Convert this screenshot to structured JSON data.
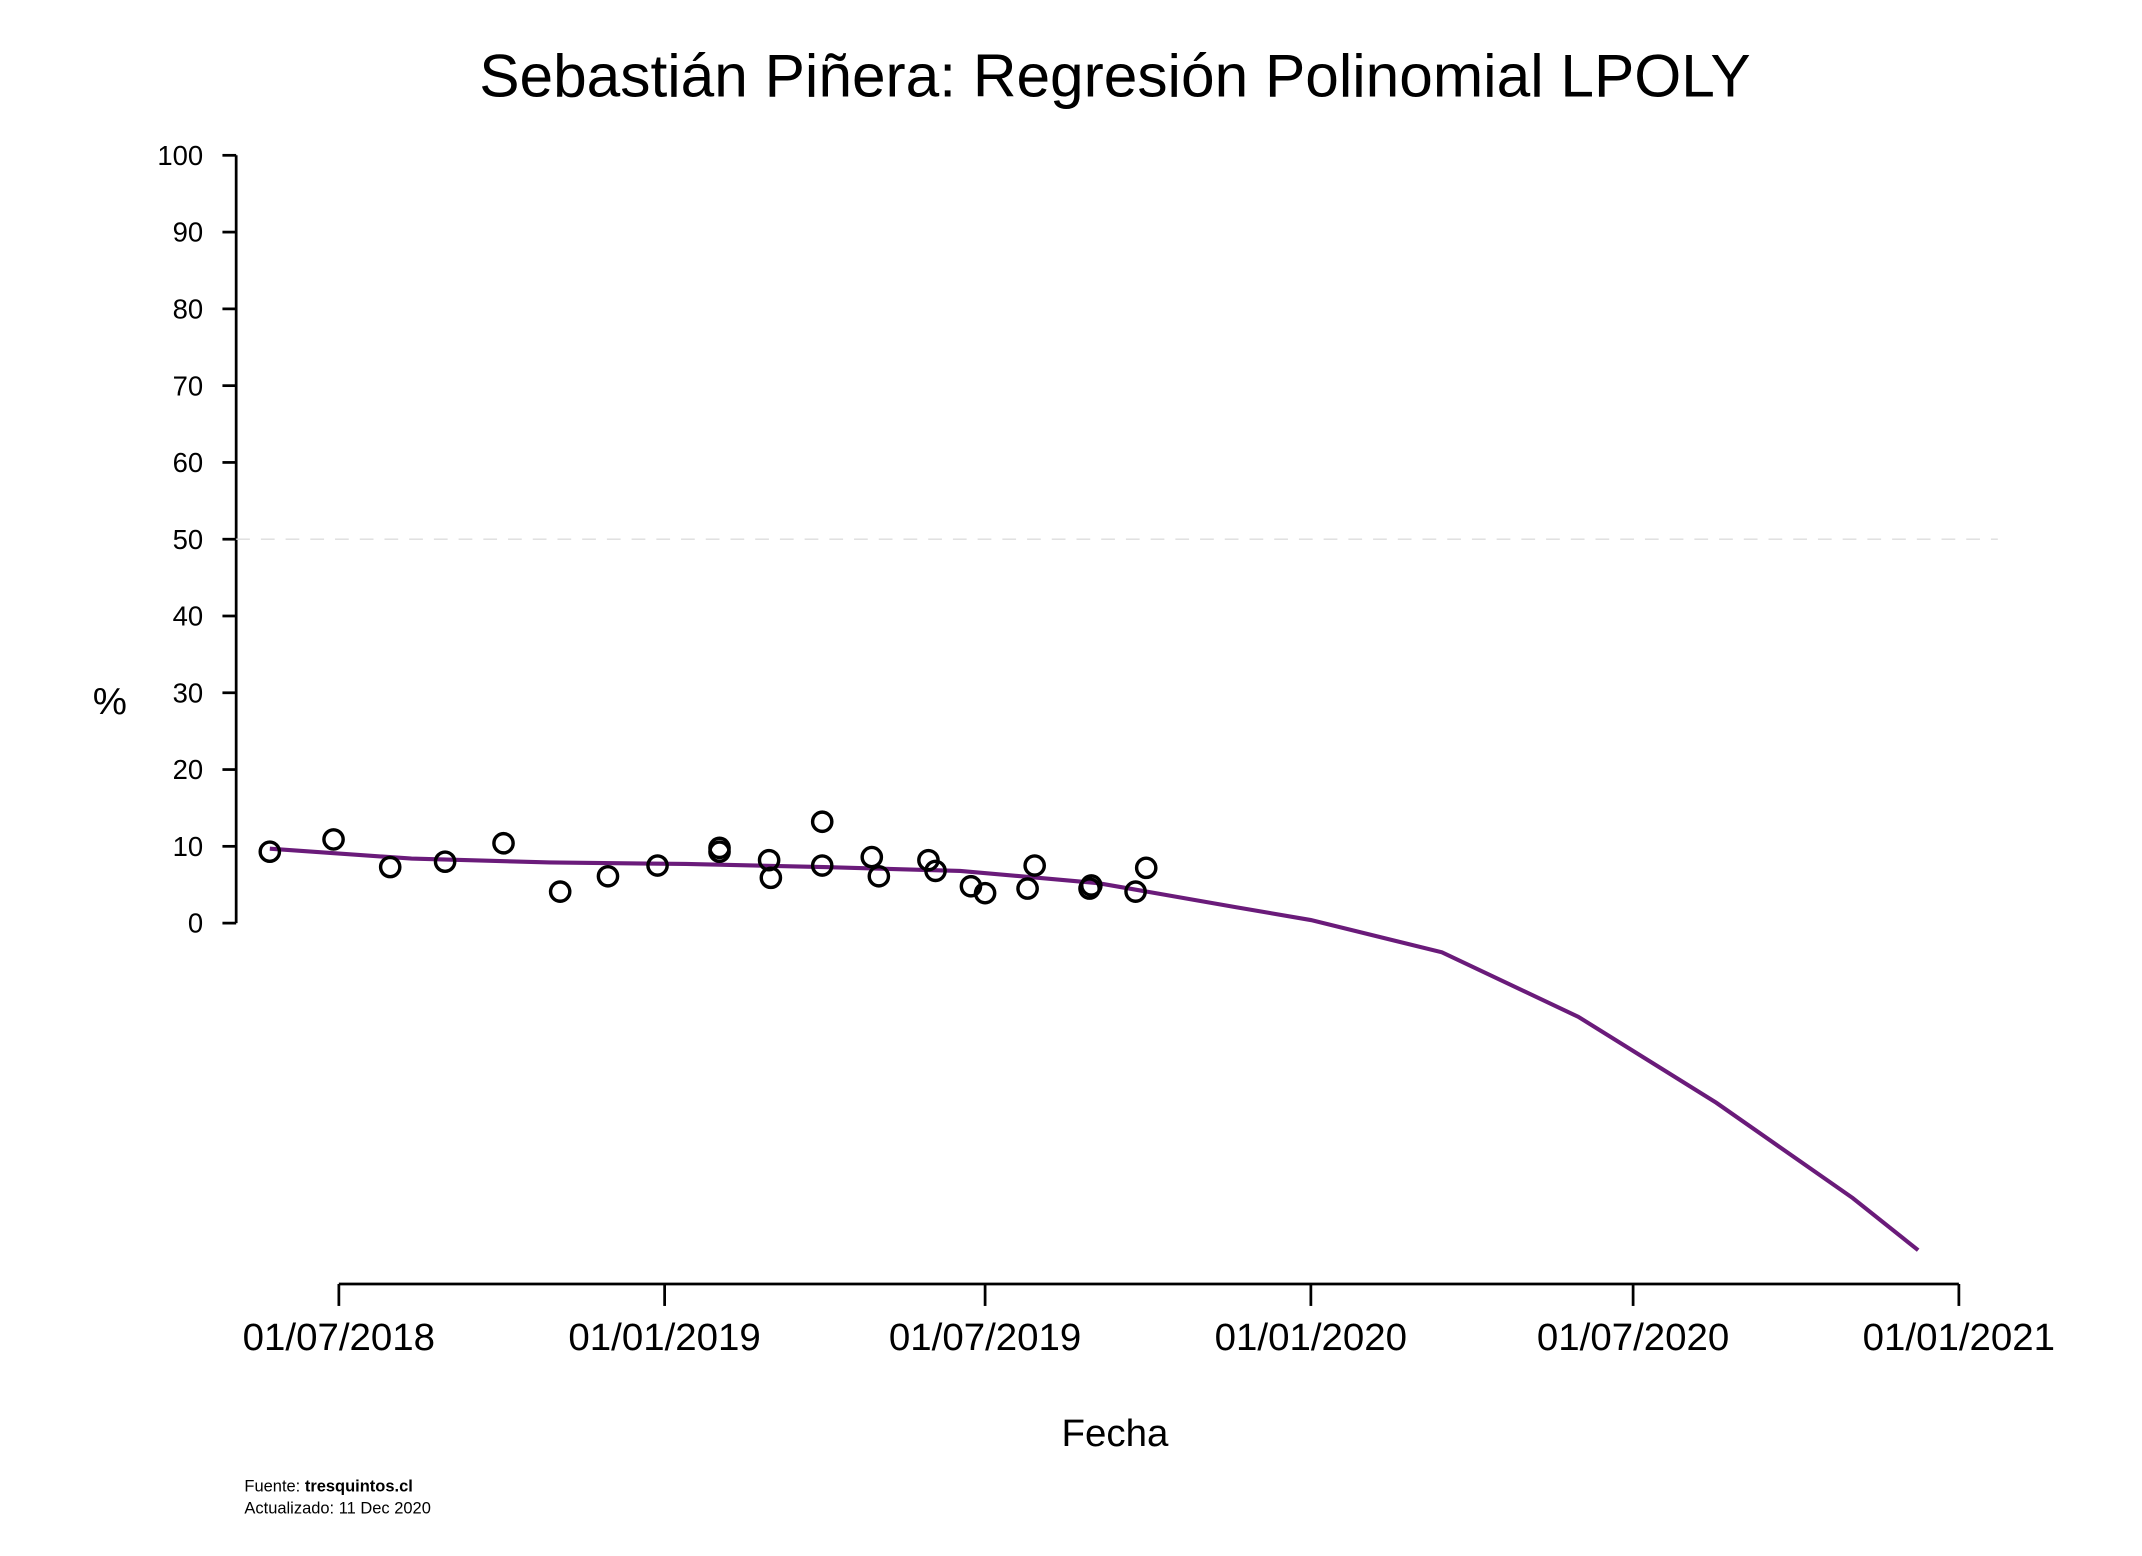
{
  "chart_data": {
    "type": "scatter",
    "title": "Sebastián Piñera: Regresión Polinomial LPOLY",
    "y_label": "%",
    "x_label": "Fecha",
    "source_prefix": "Fuente:",
    "source_name": "tresquintos.cl",
    "updated": "Actualizado: 11 Dec 2020",
    "xlim": [
      "2018-05-04",
      "2021-01-23"
    ],
    "xticks": [
      {
        "value": "2018-07-01",
        "label": "01/07/2018"
      },
      {
        "value": "2019-01-01",
        "label": "01/01/2019"
      },
      {
        "value": "2019-07-01",
        "label": "01/07/2019"
      },
      {
        "value": "2020-01-01",
        "label": "01/01/2020"
      },
      {
        "value": "2020-07-01",
        "label": "01/07/2020"
      },
      {
        "value": "2021-01-01",
        "label": "01/01/2021"
      }
    ],
    "ylim": [
      -47,
      100
    ],
    "yticks": [
      0,
      10,
      20,
      30,
      40,
      50,
      60,
      70,
      80,
      90,
      100
    ],
    "reference_line": 50,
    "points": {
      "color": "#000000",
      "x": [
        "2018-05-23",
        "2018-06-28",
        "2018-07-30",
        "2018-08-30",
        "2018-10-02",
        "2018-11-03",
        "2018-11-30",
        "2018-12-28",
        "2019-02-01",
        "2019-02-01",
        "2019-03-01",
        "2019-03-02",
        "2019-03-31",
        "2019-03-31",
        "2019-04-28",
        "2019-05-02",
        "2019-05-30",
        "2019-06-03",
        "2019-06-23",
        "2019-07-01",
        "2019-07-25",
        "2019-07-29",
        "2019-08-29",
        "2019-08-30",
        "2019-09-24",
        "2019-09-30"
      ],
      "values": [
        9.3,
        10.9,
        7.3,
        8.0,
        10.4,
        4.1,
        6.1,
        7.5,
        9.8,
        9.3,
        8.2,
        5.9,
        13.2,
        7.5,
        8.6,
        6.1,
        8.2,
        6.8,
        4.8,
        3.9,
        4.5,
        7.5,
        4.5,
        4.9,
        4.1,
        7.2
      ]
    },
    "fit": {
      "color": "#6a1b7a",
      "x": [
        "2018-05-23",
        "2018-08-11",
        "2018-10-28",
        "2019-01-13",
        "2019-04-01",
        "2019-06-17",
        "2019-09-03",
        "2019-11-19",
        "2020-01-01",
        "2020-03-15",
        "2020-05-31",
        "2020-08-17",
        "2020-11-02",
        "2020-12-09"
      ],
      "values": [
        9.7,
        8.4,
        7.9,
        7.7,
        7.3,
        6.8,
        5.2,
        2.1,
        0.4,
        -3.8,
        -12.2,
        -23.4,
        -35.8,
        -42.6
      ]
    }
  }
}
